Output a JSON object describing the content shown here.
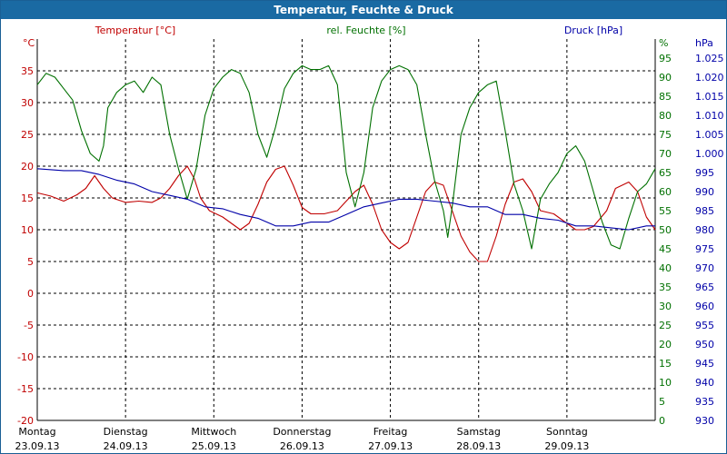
{
  "window": {
    "title": "Temperatur, Feuchte & Druck"
  },
  "chart_data": {
    "type": "line",
    "title": "Temperatur, Feuchte & Druck",
    "colors": {
      "temperature": "#c00000",
      "humidity": "#007000",
      "pressure": "#0000a8",
      "grid": "#000000"
    },
    "grid": true,
    "axes": {
      "temperature": {
        "unit": "°C",
        "label": "Temperatur [°C]",
        "range": [
          -20,
          40
        ],
        "ticks": [
          35,
          30,
          25,
          20,
          15,
          10,
          5,
          0,
          -5,
          -10,
          -15,
          -20
        ]
      },
      "humidity": {
        "unit": "%",
        "label": "rel. Feuchte [%]",
        "range": [
          0,
          100
        ],
        "ticks": [
          95,
          90,
          85,
          80,
          75,
          70,
          65,
          60,
          55,
          50,
          45,
          40,
          35,
          30,
          25,
          20,
          15,
          10,
          5,
          0
        ]
      },
      "pressure": {
        "unit": "hPa",
        "label": "Druck [hPa]",
        "range": [
          930,
          1030
        ],
        "ticks": [
          "1.025",
          "1.020",
          "1.015",
          "1.010",
          "1.005",
          "1.000",
          "995",
          "990",
          "985",
          "980",
          "975",
          "970",
          "965",
          "960",
          "955",
          "950",
          "945",
          "940",
          "935",
          "930"
        ]
      }
    },
    "x_range_days": [
      0,
      7
    ],
    "days": [
      {
        "weekday": "Montag",
        "date": "23.09.13"
      },
      {
        "weekday": "Dienstag",
        "date": "24.09.13"
      },
      {
        "weekday": "Mittwoch",
        "date": "25.09.13"
      },
      {
        "weekday": "Donnerstag",
        "date": "26.09.13"
      },
      {
        "weekday": "Freitag",
        "date": "27.09.13"
      },
      {
        "weekday": "Samstag",
        "date": "28.09.13"
      },
      {
        "weekday": "Sonntag",
        "date": "29.09.13"
      }
    ],
    "series": [
      {
        "name": "Temperatur [°C]",
        "key": "temperature",
        "axis": "temperature",
        "points": [
          [
            0,
            15.8
          ],
          [
            0.15,
            15.3
          ],
          [
            0.3,
            14.5
          ],
          [
            0.45,
            15.5
          ],
          [
            0.55,
            16.5
          ],
          [
            0.65,
            18.5
          ],
          [
            0.75,
            16.5
          ],
          [
            0.85,
            15
          ],
          [
            1.0,
            14.3
          ],
          [
            1.15,
            14.5
          ],
          [
            1.3,
            14.3
          ],
          [
            1.4,
            15
          ],
          [
            1.5,
            16.5
          ],
          [
            1.6,
            18.5
          ],
          [
            1.7,
            20
          ],
          [
            1.78,
            18
          ],
          [
            1.85,
            15
          ],
          [
            1.95,
            13
          ],
          [
            2.1,
            12
          ],
          [
            2.2,
            11
          ],
          [
            2.3,
            10
          ],
          [
            2.4,
            11
          ],
          [
            2.5,
            14
          ],
          [
            2.6,
            17.5
          ],
          [
            2.7,
            19.5
          ],
          [
            2.8,
            20
          ],
          [
            2.9,
            17
          ],
          [
            3.0,
            13.5
          ],
          [
            3.1,
            12.5
          ],
          [
            3.25,
            12.5
          ],
          [
            3.4,
            13
          ],
          [
            3.5,
            14.5
          ],
          [
            3.6,
            16
          ],
          [
            3.7,
            17
          ],
          [
            3.8,
            14
          ],
          [
            3.9,
            10
          ],
          [
            4.0,
            8
          ],
          [
            4.1,
            7
          ],
          [
            4.2,
            8
          ],
          [
            4.3,
            12
          ],
          [
            4.4,
            16
          ],
          [
            4.5,
            17.5
          ],
          [
            4.6,
            17
          ],
          [
            4.7,
            13
          ],
          [
            4.8,
            9
          ],
          [
            4.9,
            6.5
          ],
          [
            5.0,
            5
          ],
          [
            5.1,
            5
          ],
          [
            5.2,
            9
          ],
          [
            5.3,
            14
          ],
          [
            5.4,
            17.5
          ],
          [
            5.5,
            18
          ],
          [
            5.6,
            16
          ],
          [
            5.7,
            13
          ],
          [
            5.85,
            12.5
          ],
          [
            6.0,
            11
          ],
          [
            6.1,
            10
          ],
          [
            6.2,
            10
          ],
          [
            6.3,
            10.5
          ],
          [
            6.45,
            13
          ],
          [
            6.55,
            16.5
          ],
          [
            6.7,
            17.5
          ],
          [
            6.8,
            16
          ],
          [
            6.9,
            12
          ],
          [
            7.0,
            10
          ]
        ]
      },
      {
        "name": "rel. Feuchte [%]",
        "key": "humidity",
        "axis": "humidity",
        "points": [
          [
            0,
            88
          ],
          [
            0.1,
            91
          ],
          [
            0.2,
            90
          ],
          [
            0.3,
            87
          ],
          [
            0.4,
            84
          ],
          [
            0.5,
            76
          ],
          [
            0.6,
            70
          ],
          [
            0.7,
            68
          ],
          [
            0.75,
            72
          ],
          [
            0.8,
            82
          ],
          [
            0.9,
            86
          ],
          [
            1.0,
            88
          ],
          [
            1.1,
            89
          ],
          [
            1.2,
            86
          ],
          [
            1.3,
            90
          ],
          [
            1.4,
            88
          ],
          [
            1.5,
            75
          ],
          [
            1.6,
            66
          ],
          [
            1.7,
            58
          ],
          [
            1.8,
            66
          ],
          [
            1.9,
            80
          ],
          [
            2.0,
            87
          ],
          [
            2.1,
            90
          ],
          [
            2.2,
            92
          ],
          [
            2.3,
            91
          ],
          [
            2.4,
            86
          ],
          [
            2.5,
            75
          ],
          [
            2.6,
            69
          ],
          [
            2.7,
            77
          ],
          [
            2.8,
            87
          ],
          [
            2.9,
            91
          ],
          [
            3.0,
            93
          ],
          [
            3.1,
            92
          ],
          [
            3.2,
            92
          ],
          [
            3.3,
            93
          ],
          [
            3.4,
            88
          ],
          [
            3.5,
            65
          ],
          [
            3.6,
            56
          ],
          [
            3.7,
            65
          ],
          [
            3.8,
            82
          ],
          [
            3.9,
            89
          ],
          [
            4.0,
            92
          ],
          [
            4.1,
            93
          ],
          [
            4.2,
            92
          ],
          [
            4.3,
            88
          ],
          [
            4.4,
            75
          ],
          [
            4.5,
            63
          ],
          [
            4.6,
            55
          ],
          [
            4.65,
            48
          ],
          [
            4.7,
            56
          ],
          [
            4.8,
            75
          ],
          [
            4.9,
            82
          ],
          [
            5.0,
            86
          ],
          [
            5.1,
            88
          ],
          [
            5.2,
            89
          ],
          [
            5.3,
            76
          ],
          [
            5.4,
            62
          ],
          [
            5.5,
            55
          ],
          [
            5.6,
            45
          ],
          [
            5.7,
            58
          ],
          [
            5.8,
            62
          ],
          [
            5.9,
            65
          ],
          [
            6.0,
            70
          ],
          [
            6.1,
            72
          ],
          [
            6.2,
            68
          ],
          [
            6.3,
            60
          ],
          [
            6.4,
            52
          ],
          [
            6.5,
            46
          ],
          [
            6.6,
            45
          ],
          [
            6.7,
            53
          ],
          [
            6.8,
            60
          ],
          [
            6.9,
            62
          ],
          [
            7.0,
            66
          ]
        ]
      },
      {
        "name": "Druck [hPa]",
        "key": "pressure",
        "axis": "pressure",
        "points": [
          [
            0,
            996
          ],
          [
            0.3,
            995.5
          ],
          [
            0.5,
            995.5
          ],
          [
            0.7,
            994.5
          ],
          [
            0.9,
            993
          ],
          [
            1.1,
            992
          ],
          [
            1.3,
            990
          ],
          [
            1.5,
            989
          ],
          [
            1.7,
            988
          ],
          [
            1.9,
            986
          ],
          [
            2.1,
            985.5
          ],
          [
            2.3,
            984
          ],
          [
            2.5,
            983
          ],
          [
            2.7,
            981
          ],
          [
            2.9,
            981
          ],
          [
            3.1,
            982
          ],
          [
            3.3,
            982
          ],
          [
            3.5,
            984
          ],
          [
            3.7,
            986
          ],
          [
            3.9,
            987
          ],
          [
            4.1,
            988
          ],
          [
            4.3,
            988
          ],
          [
            4.5,
            987.5
          ],
          [
            4.7,
            987
          ],
          [
            4.9,
            986
          ],
          [
            5.1,
            986
          ],
          [
            5.3,
            984
          ],
          [
            5.5,
            984
          ],
          [
            5.7,
            983
          ],
          [
            5.9,
            982.5
          ],
          [
            6.1,
            981
          ],
          [
            6.3,
            981
          ],
          [
            6.5,
            980.5
          ],
          [
            6.7,
            980
          ],
          [
            6.9,
            981
          ],
          [
            7.0,
            981
          ]
        ]
      }
    ]
  }
}
